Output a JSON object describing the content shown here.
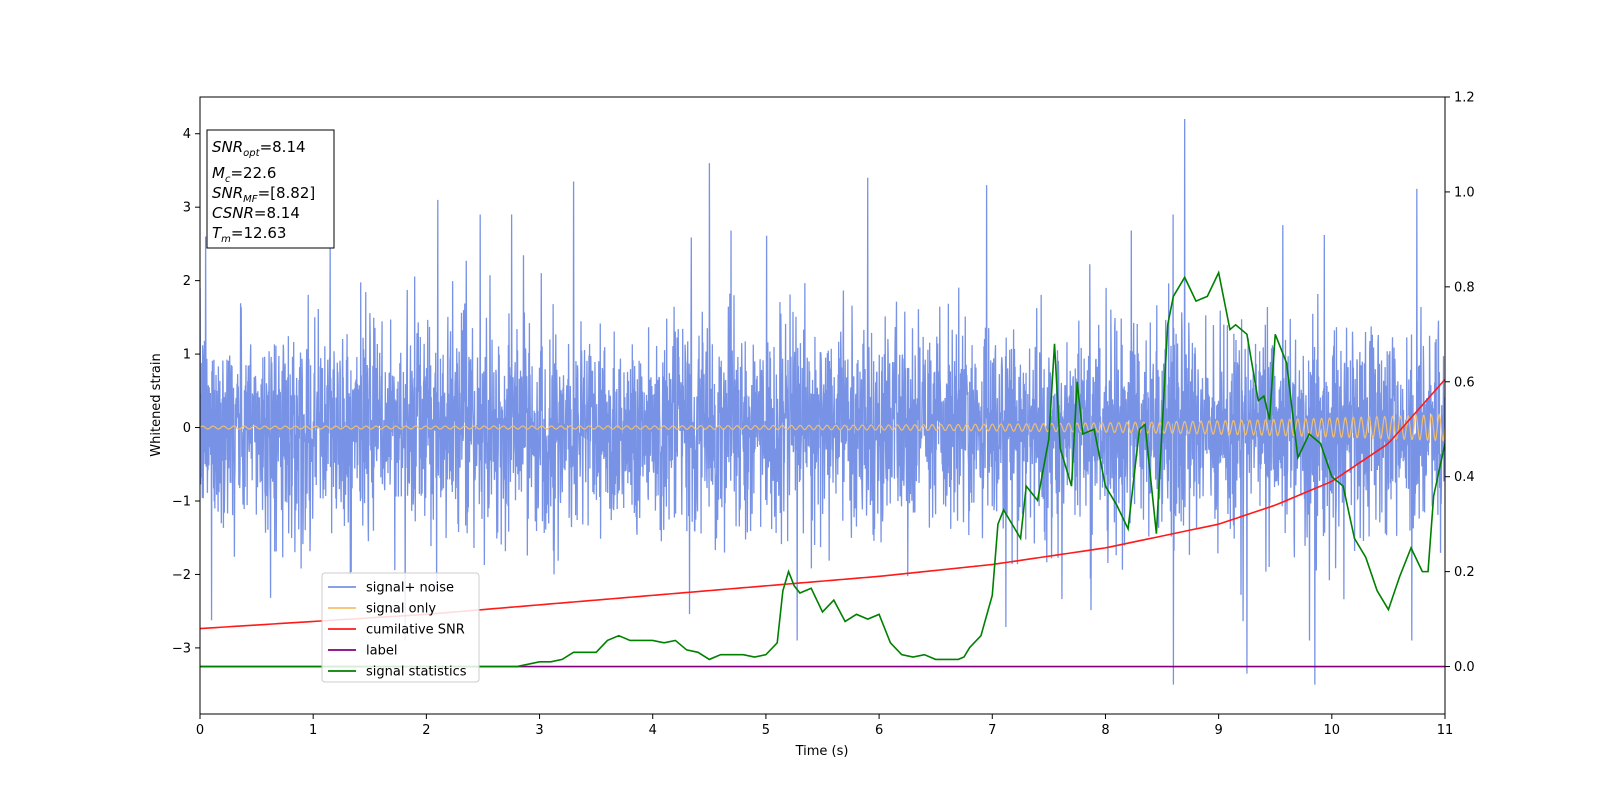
{
  "chart_data": {
    "type": "line",
    "xlabel": "Time (s)",
    "ylabel": "Whitened strain",
    "x_range": [
      0,
      11
    ],
    "y_left_range": [
      -3.9,
      4.5
    ],
    "y_right_range": [
      -0.1,
      1.2
    ],
    "x_ticks": [
      "0",
      "1",
      "2",
      "3",
      "4",
      "5",
      "6",
      "7",
      "8",
      "9",
      "10",
      "11"
    ],
    "y_left_ticks": [
      "−3",
      "−2",
      "−1",
      "0",
      "1",
      "2",
      "3",
      "4"
    ],
    "y_right_ticks": [
      "0.0",
      "0.2",
      "0.4",
      "0.6",
      "0.8",
      "1.0",
      "1.2"
    ],
    "grid": false,
    "legend_placement": "lower-left",
    "info_box": {
      "snr_opt": {
        "main": "SNR",
        "sub": "opt",
        "value": "=8.14"
      },
      "mc": {
        "main": "M",
        "sub": "c",
        "value": "=22.6"
      },
      "snr_mf": {
        "main": "SNR",
        "sub": "MF",
        "value": "=[8.82]"
      },
      "csnr": {
        "main": "CSNR",
        "value": "=8.14"
      },
      "tm": {
        "main": "T",
        "sub": "m",
        "value": "=12.63"
      }
    },
    "series": [
      {
        "name": "signal+ noise",
        "color": "#7893e6",
        "axis": "left",
        "description_values": {
          "noise_std": 0.95,
          "burst_peaks": [
            [
              0.05,
              2.6
            ],
            [
              1.15,
              2.5
            ],
            [
              2.1,
              3.1
            ],
            [
              3.3,
              3.35
            ],
            [
              4.5,
              3.6
            ],
            [
              5.9,
              3.4
            ],
            [
              6.95,
              3.3
            ],
            [
              8.7,
              4.2
            ],
            [
              10.75,
              3.25
            ],
            [
              8.6,
              -3.5
            ],
            [
              9.85,
              -3.5
            ],
            [
              9.25,
              -3.35
            ]
          ]
        }
      },
      {
        "name": "signal only",
        "color": "#f5c06a",
        "axis": "left",
        "amplitude_start": 0.02,
        "amplitude_end": 0.18,
        "cycles": 140
      },
      {
        "name": "cumilative SNR",
        "color": "#ff1a1a",
        "axis": "right",
        "x": [
          0,
          1,
          2,
          3,
          4,
          5,
          6,
          7,
          8,
          9,
          9.5,
          10,
          10.5,
          11
        ],
        "y": [
          0.08,
          0.095,
          0.11,
          0.13,
          0.15,
          0.17,
          0.19,
          0.215,
          0.25,
          0.3,
          0.34,
          0.39,
          0.47,
          0.605
        ]
      },
      {
        "name": "label",
        "color": "#800080",
        "axis": "right",
        "x": [
          0,
          11
        ],
        "y": [
          0.0,
          0.0
        ]
      },
      {
        "name": "signal statistics",
        "color": "#008000",
        "axis": "right",
        "x": [
          0,
          0.5,
          1,
          1.5,
          2,
          2.5,
          2.8,
          3.0,
          3.1,
          3.2,
          3.3,
          3.4,
          3.5,
          3.6,
          3.7,
          3.8,
          3.9,
          4.0,
          4.1,
          4.2,
          4.3,
          4.4,
          4.5,
          4.6,
          4.7,
          4.8,
          4.9,
          5.0,
          5.1,
          5.15,
          5.2,
          5.25,
          5.3,
          5.4,
          5.5,
          5.6,
          5.7,
          5.8,
          5.9,
          6.0,
          6.1,
          6.2,
          6.3,
          6.4,
          6.5,
          6.6,
          6.7,
          6.75,
          6.8,
          6.9,
          7.0,
          7.05,
          7.1,
          7.2,
          7.25,
          7.3,
          7.4,
          7.5,
          7.55,
          7.6,
          7.7,
          7.75,
          7.8,
          7.9,
          8.0,
          8.1,
          8.2,
          8.3,
          8.35,
          8.45,
          8.55,
          8.6,
          8.7,
          8.8,
          8.9,
          9.0,
          9.1,
          9.15,
          9.25,
          9.35,
          9.4,
          9.45,
          9.5,
          9.6,
          9.7,
          9.8,
          9.9,
          10.0,
          10.1,
          10.2,
          10.3,
          10.4,
          10.5,
          10.6,
          10.7,
          10.8,
          10.85,
          10.9,
          11.0
        ],
        "y": [
          0.0,
          0.0,
          0.0,
          0.0,
          0.0,
          0.0,
          0.0,
          0.01,
          0.01,
          0.015,
          0.03,
          0.03,
          0.03,
          0.055,
          0.065,
          0.055,
          0.055,
          0.055,
          0.05,
          0.055,
          0.035,
          0.03,
          0.015,
          0.025,
          0.025,
          0.025,
          0.02,
          0.025,
          0.05,
          0.16,
          0.2,
          0.17,
          0.155,
          0.165,
          0.115,
          0.14,
          0.095,
          0.11,
          0.1,
          0.11,
          0.05,
          0.025,
          0.02,
          0.025,
          0.015,
          0.015,
          0.015,
          0.02,
          0.04,
          0.065,
          0.15,
          0.3,
          0.33,
          0.29,
          0.27,
          0.38,
          0.35,
          0.48,
          0.68,
          0.46,
          0.38,
          0.6,
          0.49,
          0.5,
          0.38,
          0.34,
          0.29,
          0.5,
          0.51,
          0.28,
          0.72,
          0.78,
          0.82,
          0.77,
          0.78,
          0.83,
          0.71,
          0.72,
          0.7,
          0.56,
          0.57,
          0.52,
          0.7,
          0.64,
          0.44,
          0.49,
          0.47,
          0.4,
          0.38,
          0.27,
          0.23,
          0.16,
          0.12,
          0.19,
          0.25,
          0.2,
          0.2,
          0.36,
          0.47
        ]
      }
    ]
  }
}
